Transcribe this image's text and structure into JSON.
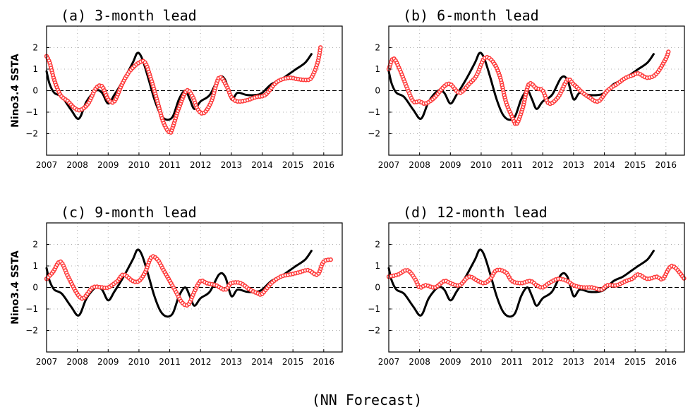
{
  "footer_label": "(NN Forecast)",
  "colors": {
    "observed": "#000000",
    "forecast": "#ff3b3b"
  },
  "chart_data": [
    {
      "type": "line",
      "title": "(a) 3-month lead",
      "ylabel": "Nino3.4 SSTA",
      "xlim": [
        2007,
        2016.6
      ],
      "ylim": [
        -3,
        3
      ],
      "xticks": [
        2007,
        2008,
        2009,
        2010,
        2011,
        2012,
        2013,
        2014,
        2015,
        2016
      ],
      "yticks": [
        -2,
        -1,
        0,
        1,
        2
      ],
      "grid": true,
      "observed": {
        "x": [
          2007.0,
          2007.1,
          2007.25,
          2007.5,
          2007.8,
          2008.05,
          2008.3,
          2008.6,
          2008.8,
          2009.0,
          2009.2,
          2009.5,
          2009.8,
          2009.95,
          2010.1,
          2010.3,
          2010.5,
          2010.7,
          2010.9,
          2011.1,
          2011.3,
          2011.5,
          2011.65,
          2011.8,
          2012.0,
          2012.3,
          2012.6,
          2012.8,
          2013.0,
          2013.2,
          2013.5,
          2013.8,
          2014.0,
          2014.3,
          2014.6,
          2014.9,
          2015.1,
          2015.4,
          2015.6
        ],
        "y": [
          0.9,
          0.3,
          -0.1,
          -0.3,
          -0.9,
          -1.3,
          -0.5,
          0.0,
          -0.1,
          -0.6,
          -0.2,
          0.5,
          1.3,
          1.75,
          1.5,
          0.6,
          -0.4,
          -1.1,
          -1.35,
          -1.2,
          -0.4,
          0.0,
          -0.4,
          -0.85,
          -0.5,
          -0.2,
          0.6,
          0.5,
          -0.4,
          -0.1,
          -0.2,
          -0.2,
          -0.1,
          0.3,
          0.5,
          0.8,
          1.0,
          1.3,
          1.7
        ]
      },
      "forecast": {
        "x": [
          2007.0,
          2007.1,
          2007.25,
          2007.45,
          2007.7,
          2007.9,
          2008.1,
          2008.35,
          2008.6,
          2008.8,
          2009.0,
          2009.2,
          2009.45,
          2009.7,
          2010.0,
          2010.2,
          2010.4,
          2010.6,
          2010.8,
          2011.0,
          2011.1,
          2011.3,
          2011.55,
          2011.75,
          2011.9,
          2012.1,
          2012.35,
          2012.6,
          2012.85,
          2013.0,
          2013.2,
          2013.5,
          2013.8,
          2014.1,
          2014.4,
          2014.6,
          2014.9,
          2015.1,
          2015.4,
          2015.6,
          2015.8,
          2015.9
        ],
        "y": [
          1.6,
          1.3,
          0.5,
          -0.2,
          -0.5,
          -0.8,
          -0.9,
          -0.6,
          0.1,
          0.2,
          -0.4,
          -0.5,
          0.3,
          0.9,
          1.3,
          1.3,
          0.5,
          -0.5,
          -1.5,
          -1.95,
          -1.7,
          -0.8,
          0.0,
          -0.3,
          -0.85,
          -1.05,
          -0.5,
          0.6,
          0.2,
          -0.3,
          -0.5,
          -0.45,
          -0.3,
          -0.2,
          0.3,
          0.5,
          0.6,
          0.55,
          0.5,
          0.6,
          1.3,
          2.05
        ]
      }
    },
    {
      "type": "line",
      "title": "(b) 6-month lead",
      "ylabel": "",
      "xlim": [
        2007,
        2016.6
      ],
      "ylim": [
        -3,
        3
      ],
      "xticks": [
        2007,
        2008,
        2009,
        2010,
        2011,
        2012,
        2013,
        2014,
        2015,
        2016
      ],
      "yticks": [
        -2,
        -1,
        0,
        1,
        2
      ],
      "grid": true,
      "observed": "same",
      "forecast": {
        "x": [
          2007.0,
          2007.15,
          2007.35,
          2007.6,
          2007.8,
          2008.0,
          2008.2,
          2008.5,
          2008.8,
          2009.0,
          2009.3,
          2009.6,
          2009.85,
          2010.1,
          2010.35,
          2010.6,
          2010.8,
          2011.0,
          2011.15,
          2011.35,
          2011.55,
          2011.8,
          2012.0,
          2012.2,
          2012.5,
          2012.8,
          2013.0,
          2013.3,
          2013.5,
          2013.8,
          2014.1,
          2014.4,
          2014.7,
          2014.9,
          2015.1,
          2015.4,
          2015.7,
          2016.0,
          2016.1
        ],
        "y": [
          1.0,
          1.5,
          1.0,
          0.1,
          -0.5,
          -0.5,
          -0.6,
          -0.3,
          0.2,
          0.3,
          -0.1,
          0.3,
          0.7,
          1.5,
          1.4,
          0.7,
          -0.5,
          -1.2,
          -1.55,
          -0.8,
          0.3,
          0.1,
          0.0,
          -0.6,
          -0.3,
          0.5,
          0.3,
          -0.1,
          -0.3,
          -0.5,
          0.0,
          0.3,
          0.6,
          0.7,
          0.8,
          0.6,
          0.8,
          1.5,
          1.9
        ]
      }
    },
    {
      "type": "line",
      "title": "(c) 9-month lead",
      "ylabel": "Nino3.4 SSTA",
      "xlim": [
        2007,
        2016.6
      ],
      "ylim": [
        -3,
        3
      ],
      "xticks": [
        2007,
        2008,
        2009,
        2010,
        2011,
        2012,
        2013,
        2014,
        2015,
        2016
      ],
      "yticks": [
        -2,
        -1,
        0,
        1,
        2
      ],
      "grid": true,
      "observed": "same",
      "forecast": {
        "x": [
          2007.0,
          2007.2,
          2007.45,
          2007.7,
          2008.0,
          2008.2,
          2008.5,
          2008.8,
          2009.0,
          2009.3,
          2009.5,
          2009.8,
          2010.0,
          2010.2,
          2010.4,
          2010.6,
          2010.8,
          2011.0,
          2011.2,
          2011.4,
          2011.6,
          2011.8,
          2012.0,
          2012.2,
          2012.5,
          2012.8,
          2013.0,
          2013.3,
          2013.6,
          2013.9,
          2014.0,
          2014.3,
          2014.6,
          2014.9,
          2015.2,
          2015.5,
          2015.8,
          2016.0,
          2016.3
        ],
        "y": [
          0.4,
          0.7,
          1.2,
          0.5,
          -0.3,
          -0.5,
          0.0,
          0.0,
          0.0,
          0.3,
          0.6,
          0.3,
          0.3,
          0.7,
          1.4,
          1.3,
          0.8,
          0.3,
          -0.2,
          -0.7,
          -0.8,
          -0.2,
          0.3,
          0.2,
          0.1,
          -0.1,
          0.2,
          0.2,
          -0.1,
          -0.3,
          -0.3,
          0.2,
          0.5,
          0.6,
          0.7,
          0.8,
          0.6,
          1.2,
          1.3
        ]
      }
    },
    {
      "type": "line",
      "title": "(d) 12-month lead",
      "ylabel": "",
      "xlim": [
        2007,
        2016.6
      ],
      "ylim": [
        -3,
        3
      ],
      "xticks": [
        2007,
        2008,
        2009,
        2010,
        2011,
        2012,
        2013,
        2014,
        2015,
        2016
      ],
      "yticks": [
        -2,
        -1,
        0,
        1,
        2
      ],
      "grid": true,
      "observed": "same",
      "forecast": {
        "x": [
          2007.0,
          2007.3,
          2007.6,
          2007.85,
          2008.0,
          2008.2,
          2008.5,
          2008.8,
          2009.0,
          2009.3,
          2009.6,
          2009.9,
          2010.1,
          2010.3,
          2010.5,
          2010.8,
          2011.0,
          2011.3,
          2011.6,
          2011.8,
          2012.0,
          2012.2,
          2012.5,
          2012.8,
          2013.0,
          2013.3,
          2013.6,
          2013.9,
          2014.1,
          2014.4,
          2014.7,
          2014.9,
          2015.1,
          2015.4,
          2015.7,
          2015.9,
          2016.2,
          2016.6
        ],
        "y": [
          0.5,
          0.6,
          0.8,
          0.4,
          0.0,
          0.1,
          0.0,
          0.3,
          0.2,
          0.1,
          0.5,
          0.3,
          0.2,
          0.4,
          0.8,
          0.7,
          0.3,
          0.2,
          0.3,
          0.1,
          0.0,
          0.2,
          0.4,
          0.3,
          0.1,
          0.0,
          0.0,
          -0.1,
          0.1,
          0.1,
          0.3,
          0.4,
          0.6,
          0.4,
          0.5,
          0.4,
          1.0,
          0.4
        ]
      }
    }
  ]
}
